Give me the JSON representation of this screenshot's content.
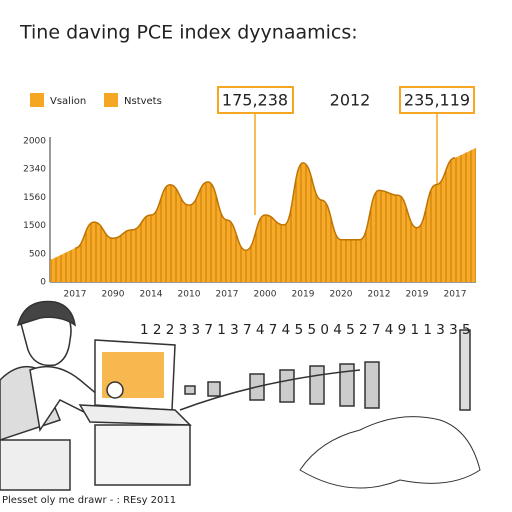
{
  "chart_data": {
    "type": "area",
    "title": "Tine daving PCE index dyynaamics:",
    "legend": [
      "Vsalion",
      "Nstvets"
    ],
    "color": "#f5a623",
    "annotations": [
      "175,238",
      "2012",
      "235,119"
    ],
    "y_axis_labels": [
      "2000",
      "2340",
      "1560",
      "1500",
      "500",
      "0"
    ],
    "categories": [
      "2017",
      null,
      "2090",
      null,
      "2014",
      null,
      "2010",
      null,
      "2017",
      null,
      "2000",
      null,
      "2019",
      null,
      "2020",
      null,
      "2012",
      null,
      "2019",
      null,
      "2017"
    ],
    "values": [
      480,
      850,
      620,
      740,
      950,
      1380,
      1090,
      1420,
      880,
      450,
      950,
      810,
      1690,
      1160,
      600,
      600,
      1300,
      1230,
      770,
      1380,
      1760
    ],
    "ylim": [
      0,
      2000
    ]
  },
  "illustration": {
    "digits": "1 2 2 3 3 7 1 3 7 4 7 4 5 5 0 4 5 2 7 4 9 1 1 3 3 5"
  },
  "footer": "Plesset oly me drawr - : REsy 2011"
}
